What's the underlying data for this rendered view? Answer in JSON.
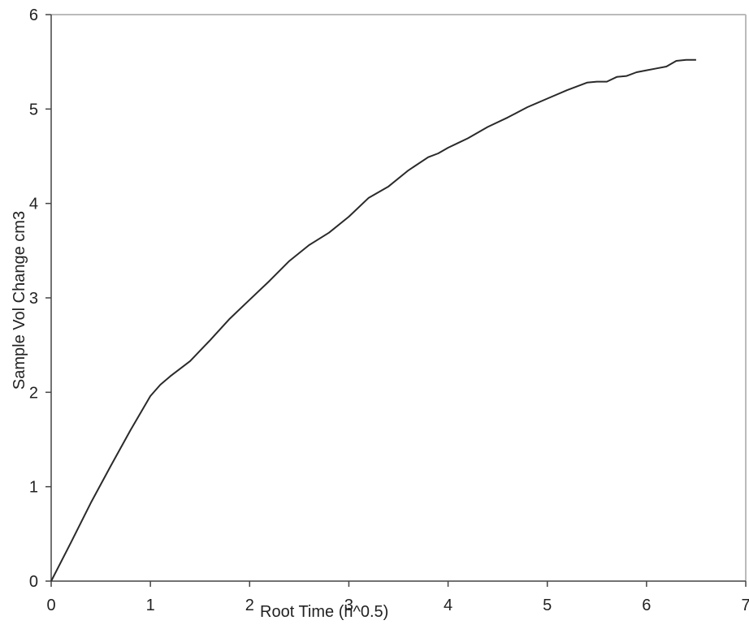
{
  "chart_data": {
    "type": "line",
    "title": "",
    "xlabel": "Root Time (h^0.5)",
    "ylabel": "Sample Vol Change cm3",
    "xlim": [
      0,
      7
    ],
    "ylim": [
      0,
      6
    ],
    "xticks": [
      "0",
      "1",
      "2",
      "3",
      "4",
      "5",
      "6",
      "7"
    ],
    "yticks": [
      "0",
      "1",
      "2",
      "3",
      "4",
      "5",
      "6"
    ],
    "grid": false,
    "legend": "none",
    "series": [
      {
        "x": [
          0,
          0.2,
          0.4,
          0.6,
          0.8,
          1.0,
          1.1,
          1.2,
          1.4,
          1.6,
          1.8,
          2.0,
          2.2,
          2.4,
          2.6,
          2.8,
          3.0,
          3.2,
          3.4,
          3.6,
          3.8,
          3.9,
          4.0,
          4.1,
          4.2,
          4.4,
          4.6,
          4.8,
          5.0,
          5.2,
          5.4,
          5.5,
          5.6,
          5.7,
          5.8,
          5.9,
          6.0,
          6.1,
          6.2,
          6.3,
          6.4,
          6.5
        ],
        "y": [
          0,
          0.41,
          0.83,
          1.22,
          1.6,
          1.96,
          2.08,
          2.17,
          2.33,
          2.55,
          2.78,
          2.98,
          3.18,
          3.39,
          3.56,
          3.69,
          3.86,
          4.06,
          4.18,
          4.35,
          4.49,
          4.53,
          4.59,
          4.64,
          4.69,
          4.81,
          4.91,
          5.02,
          5.11,
          5.2,
          5.28,
          5.29,
          5.29,
          5.34,
          5.35,
          5.39,
          5.41,
          5.43,
          5.45,
          5.51,
          5.52,
          5.52
        ]
      }
    ]
  }
}
